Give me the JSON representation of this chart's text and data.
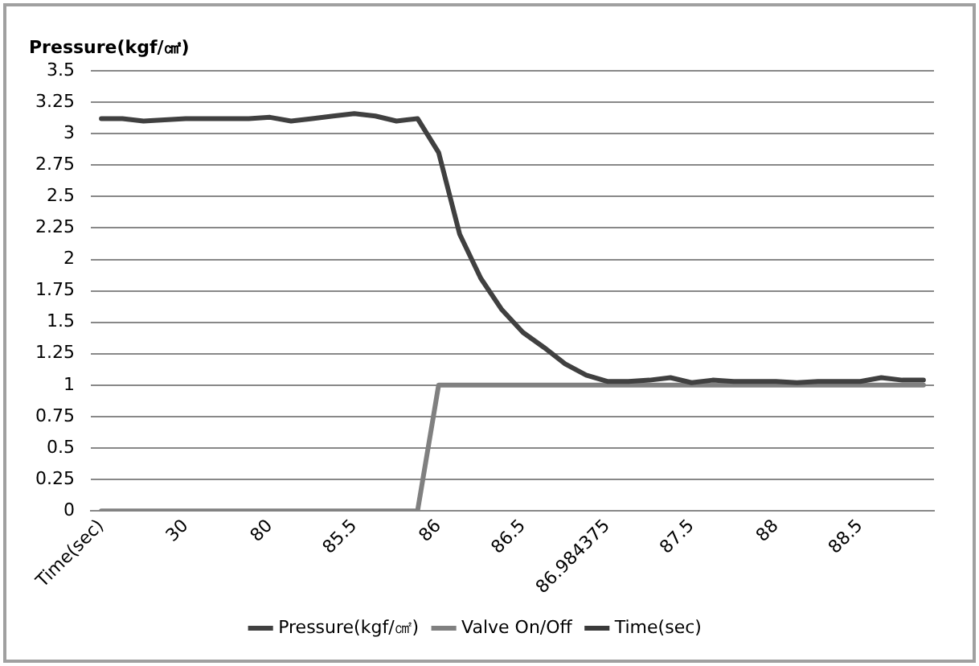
{
  "chart_data": {
    "type": "line",
    "ylabel": "Pressure(kgf/㎠)",
    "categories": [
      "Time(sec)",
      null,
      null,
      null,
      "30",
      null,
      null,
      null,
      "80",
      null,
      null,
      null,
      "85.5",
      null,
      null,
      null,
      "86",
      null,
      null,
      null,
      "86.5",
      null,
      null,
      null,
      "86.984375",
      null,
      null,
      null,
      "87.5",
      null,
      null,
      null,
      "88",
      null,
      null,
      null,
      "88.5",
      null,
      null,
      null
    ],
    "series": [
      {
        "name": "Pressure(kgf/㎠)",
        "color": "#404040",
        "values": [
          3.12,
          3.12,
          3.1,
          3.11,
          3.12,
          3.12,
          3.12,
          3.12,
          3.13,
          3.1,
          3.12,
          3.14,
          3.16,
          3.14,
          3.1,
          3.12,
          2.85,
          2.2,
          1.85,
          1.6,
          1.42,
          1.3,
          1.17,
          1.08,
          1.03,
          1.03,
          1.04,
          1.06,
          1.02,
          1.04,
          1.03,
          1.03,
          1.03,
          1.02,
          1.03,
          1.03,
          1.03,
          1.06,
          1.04,
          1.04
        ]
      },
      {
        "name": "Valve On/Off",
        "color": "#808080",
        "values": [
          0,
          0,
          0,
          0,
          0,
          0,
          0,
          0,
          0,
          0,
          0,
          0,
          0,
          0,
          0,
          0,
          1,
          1,
          1,
          1,
          1,
          1,
          1,
          1,
          1,
          1,
          1,
          1,
          1,
          1,
          1,
          1,
          1,
          1,
          1,
          1,
          1,
          1,
          1,
          1
        ]
      },
      {
        "name": "Time(sec)",
        "color": "#3a3a3a",
        "values": [
          null,
          null,
          null,
          null,
          null,
          null,
          null,
          null,
          null,
          null,
          null,
          null,
          null,
          null,
          null,
          null,
          null,
          null,
          null,
          null,
          null,
          null,
          null,
          null,
          null,
          null,
          null,
          null,
          null,
          null,
          null,
          null,
          null,
          null,
          null,
          null,
          null,
          null,
          null,
          null
        ]
      }
    ],
    "ylim": [
      0,
      3.5
    ],
    "yticks": [
      0,
      0.25,
      0.5,
      0.75,
      1,
      1.25,
      1.5,
      1.75,
      2,
      2.25,
      2.5,
      2.75,
      3,
      3.25,
      3.5
    ],
    "grid": "y",
    "legend": "bottom",
    "marker": "none",
    "line_style": "solid"
  }
}
